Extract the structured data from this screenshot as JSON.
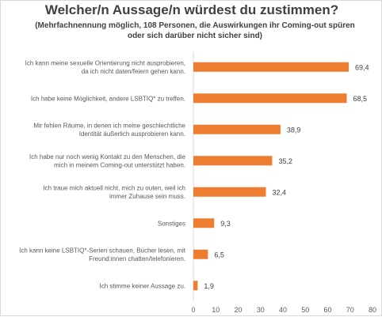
{
  "chart_data": {
    "type": "bar",
    "orientation": "horizontal",
    "title": "Welcher/n Aussage/n würdest du zustimmen?",
    "subtitle_lines": [
      "(Mehrfachnennung  möglich, 108 Personen, die Auswirkungen ihr Coming-out spüren",
      "oder sich darüber nicht sicher sind)"
    ],
    "categories": [
      [
        "Ich kann meine sexuelle Orientierung nicht ausprobieren,",
        "da ich nicht daten/feiern gehen kann."
      ],
      [
        "Ich habe keine Möglichkeit, andere LSBTIQ* zu treffen."
      ],
      [
        "Mir fehlen Räume, in denen ich meine geschlechtliche",
        "Identität äußerlich ausprobieren kann."
      ],
      [
        "Ich habe nur noch wenig Kontakt zu den Menschen, die",
        "mich in meinem Coming-out unterstützt haben."
      ],
      [
        "Ich traue mich aktuell nicht, mich zu outen, weil ich",
        "immer Zuhause sein muss."
      ],
      [
        "Sonstiges"
      ],
      [
        "Ich kann keine LSBTIQ*-Serien schauen, Bücher lesen, mit",
        "Freund:innen chatten/telefonieren."
      ],
      [
        "Ich stimme keiner Aussage zu."
      ]
    ],
    "values": [
      69.4,
      68.5,
      38.9,
      35.2,
      32.4,
      9.3,
      6.5,
      1.9
    ],
    "value_labels": [
      "69,4",
      "68,5",
      "38,9",
      "35,2",
      "32,4",
      "9,3",
      "6,5",
      "1,9"
    ],
    "x_ticks": [
      "0",
      "10",
      "20",
      "30",
      "40",
      "50",
      "60",
      "70",
      "80"
    ],
    "xlim": [
      0,
      80
    ],
    "bar_color": "#ed7d31",
    "grid": false
  }
}
